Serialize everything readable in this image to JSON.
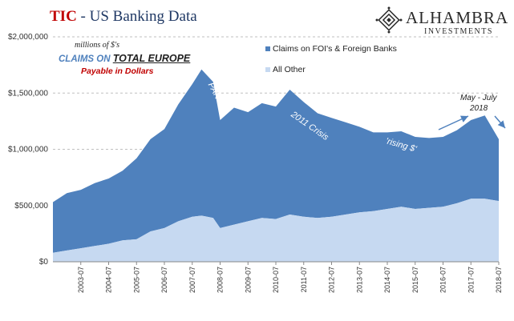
{
  "header": {
    "title_accent": "TIC",
    "title_rest": " - US Banking Data",
    "logo_name": "ALHAMBRA",
    "logo_sub": "INVESTMENTS"
  },
  "annotations": {
    "units": "millions of $'s",
    "claims_prefix": "CLAIMS ON ",
    "claims_emphasis": "TOTAL EUROPE",
    "payable": "Payable in Dollars",
    "panic": "PANIC",
    "crisis": "2011 Crisis",
    "rising": "'rising $'",
    "may_july_line1": "May - July",
    "may_july_line2": "2018"
  },
  "colors": {
    "dark_series": "#4f81bd",
    "light_series": "#c6d9f1",
    "title_accent": "#c00000",
    "grid": "#bfbfbf"
  },
  "chart_data": {
    "type": "area",
    "stacked": true,
    "x_start": "2002-07",
    "x_end": "2018-07",
    "x_tick_labels": [
      "2003-07",
      "2004-07",
      "2005-07",
      "2006-07",
      "2007-07",
      "2008-07",
      "2009-07",
      "2010-07",
      "2011-07",
      "2012-07",
      "2013-07",
      "2014-07",
      "2015-07",
      "2016-07",
      "2017-07",
      "2018-07"
    ],
    "y_tick_labels": [
      "$0",
      "$500,000",
      "$1,000,000",
      "$1,500,000",
      "$2,000,000"
    ],
    "ylim": [
      0,
      2000000
    ],
    "grid": "horizontal dashed",
    "legend_position": "top-right",
    "series": [
      {
        "name": "Claims on FOI's & Foreign Banks",
        "color": "#4f81bd",
        "points": [
          [
            "2002-07",
            450000
          ],
          [
            "2003-01",
            510000
          ],
          [
            "2003-07",
            520000
          ],
          [
            "2004-01",
            560000
          ],
          [
            "2004-07",
            580000
          ],
          [
            "2005-01",
            620000
          ],
          [
            "2005-07",
            720000
          ],
          [
            "2006-01",
            820000
          ],
          [
            "2006-07",
            880000
          ],
          [
            "2007-01",
            1040000
          ],
          [
            "2007-07",
            1180000
          ],
          [
            "2007-11",
            1300000
          ],
          [
            "2008-04",
            1210000
          ],
          [
            "2008-07",
            960000
          ],
          [
            "2009-01",
            1040000
          ],
          [
            "2009-07",
            970000
          ],
          [
            "2010-01",
            1020000
          ],
          [
            "2010-07",
            1000000
          ],
          [
            "2011-01",
            1110000
          ],
          [
            "2011-07",
            1020000
          ],
          [
            "2012-01",
            930000
          ],
          [
            "2012-07",
            880000
          ],
          [
            "2013-01",
            820000
          ],
          [
            "2013-07",
            760000
          ],
          [
            "2014-01",
            700000
          ],
          [
            "2014-07",
            680000
          ],
          [
            "2015-01",
            670000
          ],
          [
            "2015-07",
            640000
          ],
          [
            "2016-01",
            620000
          ],
          [
            "2016-07",
            620000
          ],
          [
            "2017-01",
            650000
          ],
          [
            "2017-07",
            700000
          ],
          [
            "2018-01",
            740000
          ],
          [
            "2018-07",
            550000
          ]
        ]
      },
      {
        "name": "All Other",
        "color": "#c6d9f1",
        "points": [
          [
            "2002-07",
            80000
          ],
          [
            "2003-01",
            100000
          ],
          [
            "2003-07",
            120000
          ],
          [
            "2004-01",
            140000
          ],
          [
            "2004-07",
            160000
          ],
          [
            "2005-01",
            190000
          ],
          [
            "2005-07",
            200000
          ],
          [
            "2006-01",
            270000
          ],
          [
            "2006-07",
            300000
          ],
          [
            "2007-01",
            360000
          ],
          [
            "2007-07",
            400000
          ],
          [
            "2007-11",
            410000
          ],
          [
            "2008-04",
            390000
          ],
          [
            "2008-07",
            300000
          ],
          [
            "2009-01",
            330000
          ],
          [
            "2009-07",
            360000
          ],
          [
            "2010-01",
            390000
          ],
          [
            "2010-07",
            380000
          ],
          [
            "2011-01",
            420000
          ],
          [
            "2011-07",
            400000
          ],
          [
            "2012-01",
            390000
          ],
          [
            "2012-07",
            400000
          ],
          [
            "2013-01",
            420000
          ],
          [
            "2013-07",
            440000
          ],
          [
            "2014-01",
            450000
          ],
          [
            "2014-07",
            470000
          ],
          [
            "2015-01",
            490000
          ],
          [
            "2015-07",
            470000
          ],
          [
            "2016-01",
            480000
          ],
          [
            "2016-07",
            490000
          ],
          [
            "2017-01",
            520000
          ],
          [
            "2017-07",
            560000
          ],
          [
            "2018-01",
            560000
          ],
          [
            "2018-07",
            540000
          ]
        ]
      }
    ]
  }
}
